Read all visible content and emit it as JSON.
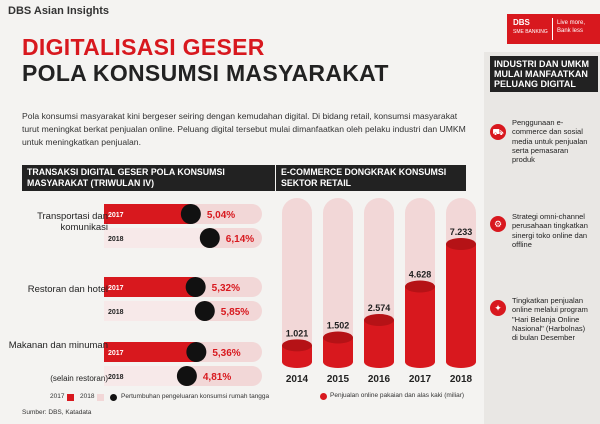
{
  "brand": "DBS Asian Insights",
  "dbs_logo": {
    "name": "DBS",
    "sub": "SME BANKING",
    "tagline": "Live more, Bank less"
  },
  "title_line1": "DIGITALISASI GESER",
  "title_line2": "POLA KONSUMSI MASYARAKAT",
  "intro": "Pola konsumsi masyarakat kini bergeser seiring dengan kemudahan digital. Di bidang retail, konsumsi masyarakat turut meningkat berkat penjualan online. Peluang digital tersebut mulai dimanfaatkan oleh pelaku industri dan UMKM untuk meningkatkan penjualan.",
  "right": {
    "heading": "INDUSTRI DAN UMKM MULAI MANFAATKAN PELUANG DIGITAL",
    "items": [
      {
        "icon": "shopping-cart-icon",
        "glyph": "⛟",
        "text": "Penggunaan e-commerce dan sosial media untuk penjualan serta pemasaran produk"
      },
      {
        "icon": "strategy-icon",
        "glyph": "⚙",
        "text": "Strategi omni-channel perusahaan tingkatkan sinergi toko online dan offline"
      },
      {
        "icon": "promotion-icon",
        "glyph": "✦",
        "text": "Tingkatkan penjualan online melalui program \"Hari Belanja Online Nasional\" (Harbolnas) di bulan Desember"
      }
    ]
  },
  "colors": {
    "red": "#d8181e",
    "pink": "#f2d7d7",
    "dark": "#222222"
  },
  "source": "Sumber: DBS, Katadata",
  "chart_data": [
    {
      "type": "bar",
      "title": "TRANSAKSI DIGITAL GESER POLA KONSUMSI MASYARAKAT (TRIWULAN IV)",
      "orientation": "horizontal",
      "categories": [
        "Transportasi dan komunikasi",
        "Restoran dan hotel",
        "Makanan dan minuman"
      ],
      "category_note": "(selain restoran)",
      "series": [
        {
          "name": "2017",
          "values": [
            5.04,
            5.32,
            5.36
          ]
        },
        {
          "name": "2018",
          "values": [
            6.14,
            5.85,
            4.81
          ]
        }
      ],
      "value_labels": [
        [
          "5,04%",
          "6,14%"
        ],
        [
          "5,32%",
          "5,85%"
        ],
        [
          "5,36%",
          "4,81%"
        ]
      ],
      "legend_note": "Pertumbuhan pengeluaran konsumsi rumah tangga"
    },
    {
      "type": "bar",
      "title": "E-COMMERCE DONGKRAK KONSUMSI SEKTOR RETAIL",
      "categories": [
        "2014",
        "2015",
        "2016",
        "2017",
        "2018"
      ],
      "values": [
        1021,
        1502,
        2574,
        4628,
        7233
      ],
      "value_labels": [
        "1.021",
        "1.502",
        "2.574",
        "4.628",
        "7.233"
      ],
      "legend": "Penjualan online pakaian dan alas kaki (miliar)",
      "ylim": [
        0,
        7233
      ]
    }
  ]
}
